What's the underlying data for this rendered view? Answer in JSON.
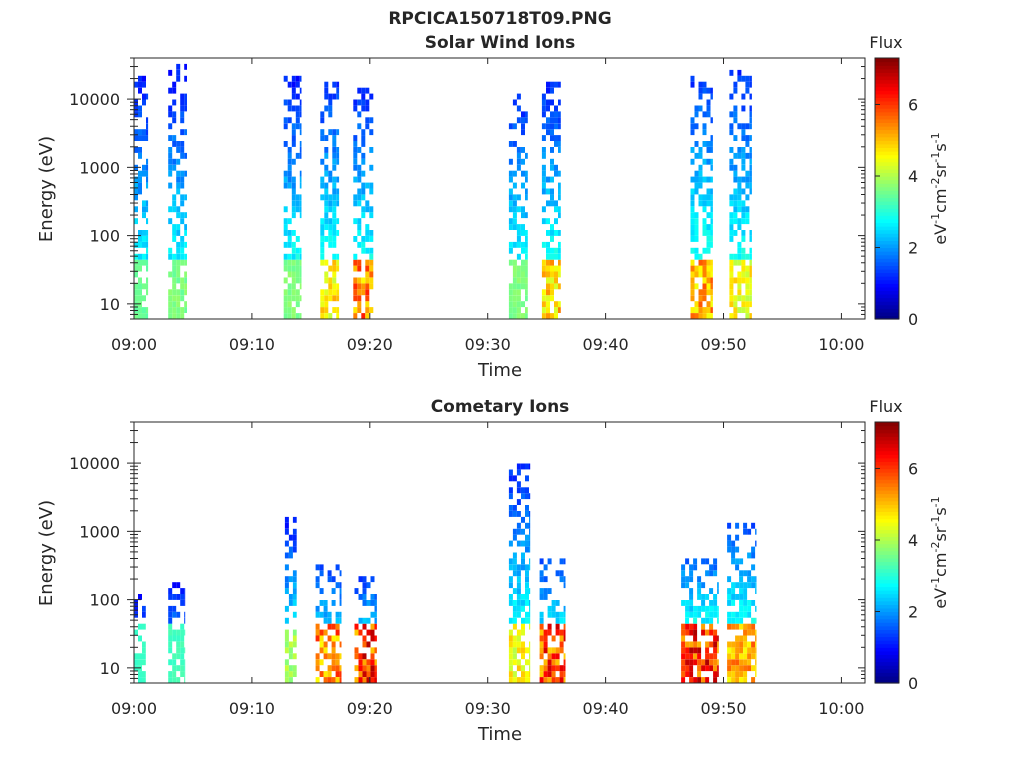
{
  "figure_title": "RPCICA150718T09.PNG",
  "colorbar": {
    "label": "Flux",
    "unit_text": "eV-1cm-2sr-1s-1",
    "ticks": [
      0,
      2,
      4,
      6
    ],
    "range": [
      0,
      7.3
    ],
    "colormap": "jet"
  },
  "colors": {
    "axis": "#262626",
    "background": "#ffffff"
  },
  "chart_data": [
    {
      "type": "heatmap",
      "title": "Solar Wind Ions",
      "xlabel": "Time",
      "ylabel": "Energy (eV)",
      "x_unit": "minutes after 09:00",
      "x_ticks": [
        "09:00",
        "09:10",
        "09:20",
        "09:30",
        "09:40",
        "09:50",
        "10:00"
      ],
      "y_ticks": [
        "10",
        "100",
        "1000",
        "10000"
      ],
      "y_scale": "log",
      "xlim": [
        0,
        62
      ],
      "ylim": [
        6,
        40000
      ],
      "bursts": [
        {
          "t": [
            0.0,
            1.2
          ],
          "ecut": 25000,
          "low_flux": 3.2,
          "peak_flux": 3.6
        },
        {
          "t": [
            2.9,
            4.5
          ],
          "ecut": 36000,
          "low_flux": 3.2,
          "peak_flux": 3.8
        },
        {
          "t": [
            12.7,
            14.2
          ],
          "ecut": 22000,
          "low_flux": 3.3,
          "peak_flux": 3.8
        },
        {
          "t": [
            15.8,
            17.4
          ],
          "ecut": 19000,
          "low_flux": 3.4,
          "peak_flux": 5.2
        },
        {
          "t": [
            18.6,
            20.3
          ],
          "ecut": 16000,
          "low_flux": 3.4,
          "peak_flux": 6.3
        },
        {
          "t": [
            31.8,
            33.4
          ],
          "ecut": 16000,
          "low_flux": 3.3,
          "peak_flux": 3.8
        },
        {
          "t": [
            34.6,
            36.2
          ],
          "ecut": 18000,
          "low_flux": 3.4,
          "peak_flux": 5.5
        },
        {
          "t": [
            47.2,
            49.1
          ],
          "ecut": 20000,
          "low_flux": 3.5,
          "peak_flux": 5.8
        },
        {
          "t": [
            50.5,
            52.4
          ],
          "ecut": 26000,
          "low_flux": 3.4,
          "peak_flux": 5.0
        }
      ]
    },
    {
      "type": "heatmap",
      "title": "Cometary Ions",
      "xlabel": "Time",
      "ylabel": "Energy (eV)",
      "x_unit": "minutes after 09:00",
      "x_ticks": [
        "09:00",
        "09:10",
        "09:20",
        "09:30",
        "09:40",
        "09:50",
        "10:00"
      ],
      "y_ticks": [
        "10",
        "100",
        "1000",
        "10000"
      ],
      "y_scale": "log",
      "xlim": [
        0,
        62
      ],
      "ylim": [
        6,
        40000
      ],
      "bursts": [
        {
          "t": [
            0.0,
            1.0
          ],
          "ecut": 120,
          "low_flux": 3.0,
          "peak_flux": 3.2
        },
        {
          "t": [
            2.9,
            4.3
          ],
          "ecut": 190,
          "low_flux": 3.0,
          "peak_flux": 3.3
        },
        {
          "t": [
            12.8,
            13.8
          ],
          "ecut": 1700,
          "low_flux": 3.3,
          "peak_flux": 4.2
        },
        {
          "t": [
            15.4,
            17.6
          ],
          "ecut": 300,
          "low_flux": 3.5,
          "peak_flux": 6.2
        },
        {
          "t": [
            18.7,
            20.6
          ],
          "ecut": 220,
          "low_flux": 3.5,
          "peak_flux": 7.0
        },
        {
          "t": [
            31.8,
            33.6
          ],
          "ecut": 10800,
          "low_flux": 3.3,
          "peak_flux": 5.0
        },
        {
          "t": [
            34.4,
            36.6
          ],
          "ecut": 380,
          "low_flux": 3.6,
          "peak_flux": 6.8
        },
        {
          "t": [
            46.4,
            49.6
          ],
          "ecut": 420,
          "low_flux": 3.8,
          "peak_flux": 7.0
        },
        {
          "t": [
            50.3,
            52.8
          ],
          "ecut": 1700,
          "low_flux": 3.6,
          "peak_flux": 5.8
        }
      ]
    }
  ]
}
